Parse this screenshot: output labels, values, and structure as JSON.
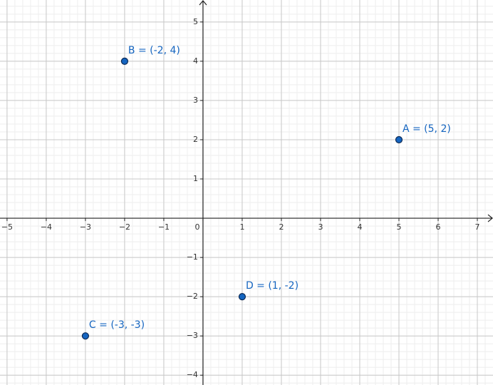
{
  "chart_data": {
    "type": "scatter",
    "x": [
      5,
      -2,
      -3,
      1
    ],
    "values": [
      2,
      4,
      -3,
      -2
    ],
    "point_labels": [
      "A = (5, 2)",
      "B = (-2, 4)",
      "C = (-3, -3)",
      "D = (1, -2)"
    ],
    "color": "#1565c0",
    "xlim": [
      -5.18,
      7.4
    ],
    "ylim": [
      -4.25,
      5.56
    ],
    "xticks": [
      {
        "value": -5,
        "label": "−5"
      },
      {
        "value": -4,
        "label": "−4"
      },
      {
        "value": -3,
        "label": "−3"
      },
      {
        "value": -2,
        "label": "−2"
      },
      {
        "value": -1,
        "label": "−1"
      },
      0,
      1,
      2,
      3,
      4,
      5,
      6,
      7
    ],
    "yticks": [
      {
        "value": -4,
        "label": "−4"
      },
      {
        "value": -3,
        "label": "−3"
      },
      {
        "value": -2,
        "label": "−2"
      },
      {
        "value": -1,
        "label": "−1"
      },
      1,
      2,
      3,
      4,
      5
    ],
    "grid": true
  }
}
